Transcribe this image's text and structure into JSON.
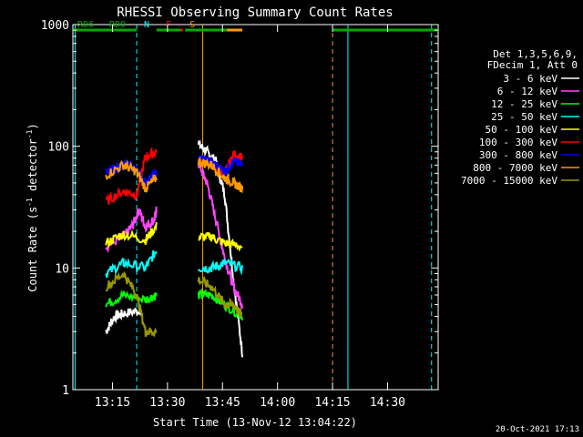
{
  "chart_data": {
    "type": "line",
    "title": "RHESSI Observing Summary Count Rates",
    "xlabel": "Start Time (13-Nov-12 13:04:22)",
    "ylabel_main": "Count Rate (s",
    "ylabel_sup1": "-1",
    "ylabel_mid": " detector",
    "ylabel_sup2": "-1",
    "ylabel_end": ")",
    "yscale": "log",
    "ylim": [
      1,
      1000
    ],
    "xlim_minutes": [
      13.07,
      14.73
    ],
    "xticks": [
      {
        "label": "13:15",
        "t": 13.25
      },
      {
        "label": "13:30",
        "t": 13.5
      },
      {
        "label": "13:45",
        "t": 13.75
      },
      {
        "label": "14:00",
        "t": 14.0
      },
      {
        "label": "14:15",
        "t": 14.25
      },
      {
        "label": "14:30",
        "t": 14.5
      }
    ],
    "yticks": [
      {
        "label": "1",
        "v": 1
      },
      {
        "label": "10",
        "v": 10
      },
      {
        "label": "100",
        "v": 100
      },
      {
        "label": "1000",
        "v": 1000
      }
    ],
    "legend_header": [
      "Det 1,3,5,6,9,",
      "FDecim 1, Att 0"
    ],
    "series": [
      {
        "name": "3 - 6 keV",
        "color": "#ffffff",
        "seg1": [
          [
            13.22,
            3
          ],
          [
            13.26,
            4
          ],
          [
            13.3,
            4.2
          ],
          [
            13.38,
            4.5
          ]
        ],
        "seg2": [
          [
            13.64,
            105
          ],
          [
            13.68,
            90
          ],
          [
            13.72,
            75
          ],
          [
            13.76,
            40
          ],
          [
            13.8,
            8
          ],
          [
            13.84,
            2
          ]
        ]
      },
      {
        "name": "6 - 12 keV",
        "color": "#ff44ff",
        "seg1": [
          [
            13.22,
            15
          ],
          [
            13.3,
            18
          ],
          [
            13.34,
            22
          ],
          [
            13.37,
            30
          ],
          [
            13.4,
            22
          ],
          [
            13.44,
            25
          ],
          [
            13.45,
            30
          ]
        ],
        "seg2": [
          [
            13.64,
            72
          ],
          [
            13.68,
            50
          ],
          [
            13.72,
            25
          ],
          [
            13.76,
            12
          ],
          [
            13.8,
            7
          ],
          [
            13.84,
            5
          ]
        ]
      },
      {
        "name": "12 - 25 keV",
        "color": "#00ff00",
        "seg1": [
          [
            13.22,
            5
          ],
          [
            13.3,
            6
          ],
          [
            13.4,
            5.5
          ],
          [
            13.45,
            6
          ]
        ],
        "seg2": [
          [
            13.64,
            6
          ],
          [
            13.7,
            6
          ],
          [
            13.76,
            5
          ],
          [
            13.84,
            4
          ]
        ]
      },
      {
        "name": "25 - 50 keV",
        "color": "#00ffff",
        "seg1": [
          [
            13.22,
            9
          ],
          [
            13.3,
            11
          ],
          [
            13.4,
            10
          ],
          [
            13.45,
            14
          ]
        ],
        "seg2": [
          [
            13.64,
            10
          ],
          [
            13.7,
            10
          ],
          [
            13.76,
            11
          ],
          [
            13.84,
            10
          ]
        ]
      },
      {
        "name": "50 - 100 keV",
        "color": "#ffff00",
        "seg1": [
          [
            13.22,
            16
          ],
          [
            13.3,
            19
          ],
          [
            13.4,
            17
          ],
          [
            13.45,
            22
          ]
        ],
        "seg2": [
          [
            13.64,
            18
          ],
          [
            13.7,
            18
          ],
          [
            13.76,
            16
          ],
          [
            13.84,
            15
          ]
        ]
      },
      {
        "name": "100 - 300 keV",
        "color": "#ff0000",
        "seg1": [
          [
            13.22,
            35
          ],
          [
            13.3,
            43
          ],
          [
            13.36,
            40
          ],
          [
            13.4,
            82
          ],
          [
            13.45,
            90
          ]
        ],
        "seg2": [
          [
            13.64,
            77
          ],
          [
            13.7,
            72
          ],
          [
            13.76,
            60
          ],
          [
            13.8,
            85
          ],
          [
            13.84,
            80
          ]
        ]
      },
      {
        "name": "300 - 800 keV",
        "color": "#0000ff",
        "seg1": [
          [
            13.22,
            60
          ],
          [
            13.3,
            72
          ],
          [
            13.36,
            65
          ],
          [
            13.4,
            50
          ],
          [
            13.45,
            60
          ]
        ],
        "seg2": [
          [
            13.64,
            80
          ],
          [
            13.7,
            75
          ],
          [
            13.76,
            62
          ],
          [
            13.8,
            75
          ],
          [
            13.84,
            70
          ]
        ]
      },
      {
        "name": "800 - 7000 keV",
        "color": "#ff9900",
        "seg1": [
          [
            13.22,
            58
          ],
          [
            13.3,
            70
          ],
          [
            13.36,
            62
          ],
          [
            13.4,
            45
          ],
          [
            13.45,
            55
          ]
        ],
        "seg2": [
          [
            13.64,
            75
          ],
          [
            13.7,
            70
          ],
          [
            13.76,
            55
          ],
          [
            13.8,
            50
          ],
          [
            13.84,
            45
          ]
        ]
      },
      {
        "name": "7000 - 15000 keV",
        "color": "#999900",
        "seg1": [
          [
            13.22,
            7
          ],
          [
            13.3,
            9
          ],
          [
            13.36,
            6
          ],
          [
            13.4,
            3
          ],
          [
            13.45,
            3
          ]
        ],
        "seg2": [
          [
            13.64,
            8
          ],
          [
            13.7,
            7
          ],
          [
            13.76,
            5
          ],
          [
            13.8,
            5
          ],
          [
            13.84,
            4
          ]
        ]
      }
    ],
    "flags": [
      {
        "label": "N",
        "color": "#00ffff",
        "y": 1060,
        "segments": [
          [
            13.07,
            13.35
          ],
          [
            14.63,
            14.73
          ]
        ]
      },
      {
        "label": "F",
        "color": "#ff0000",
        "y": 1010,
        "segments": [
          [
            13.55,
            13.57
          ],
          [
            14.27,
            14.3
          ]
        ]
      },
      {
        "label": "S",
        "color": "#ff9900",
        "y": 1150,
        "segments": [
          [
            13.65,
            13.84
          ]
        ]
      },
      {
        "label": "RD0",
        "color": "#00aa00",
        "y": 960,
        "segments": [
          [
            13.07,
            13.13
          ],
          [
            13.58,
            13.77
          ],
          [
            14.32,
            14.73
          ]
        ]
      },
      {
        "label": "RD6",
        "color": "#00aa00",
        "y": 910,
        "segments": [
          [
            13.07,
            13.36
          ],
          [
            13.45,
            13.56
          ],
          [
            14.25,
            14.32
          ]
        ]
      }
    ],
    "vlines": [
      {
        "t": 13.08,
        "color": "#00ffff",
        "dash": false
      },
      {
        "t": 13.36,
        "color": "#00ffff",
        "dash": true
      },
      {
        "t": 13.66,
        "color": "#ff9900",
        "dash": false
      },
      {
        "t": 14.25,
        "color": "#ff9900",
        "dash": true
      },
      {
        "t": 14.32,
        "color": "#00ffff",
        "dash": false
      },
      {
        "t": 14.7,
        "color": "#00ffff",
        "dash": true
      }
    ],
    "timestamp": "20-Oct-2021 17:13",
    "grid": false,
    "legend_position": "right"
  }
}
